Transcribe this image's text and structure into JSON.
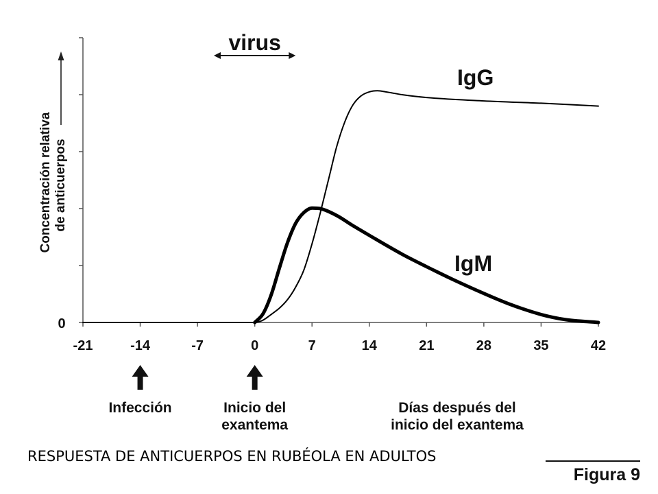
{
  "chart_data": {
    "type": "line",
    "title": "RESPUESTA DE ANTICUERPOS EN RUBÉOLA EN ADULTOS",
    "xlabel": [
      "Días después del",
      "inicio del exantema"
    ],
    "ylabel": [
      "Concentración relativa",
      "de anticuerpos"
    ],
    "xlim": [
      -21,
      42
    ],
    "ylim": [
      0,
      5
    ],
    "xticks": [
      -21,
      -14,
      -7,
      0,
      7,
      14,
      21,
      28,
      35,
      42
    ],
    "yticks": [
      0,
      1,
      2,
      3,
      4,
      5
    ],
    "ytick_labels": [
      {
        "value": 0,
        "label": "0"
      }
    ],
    "grid": false,
    "series": [
      {
        "name": "IgG",
        "color": "#000000",
        "x": [
          -21,
          -14,
          -7,
          0,
          1,
          2,
          3,
          4,
          5,
          6,
          7,
          8,
          9,
          10,
          11,
          12,
          13,
          14,
          15,
          16,
          18,
          21,
          28,
          35,
          42
        ],
        "y": [
          0,
          0,
          0,
          0,
          0.04,
          0.14,
          0.25,
          0.4,
          0.62,
          0.92,
          1.38,
          1.92,
          2.5,
          3.08,
          3.52,
          3.82,
          3.98,
          4.05,
          4.07,
          4.05,
          4.0,
          3.95,
          3.89,
          3.85,
          3.8
        ]
      },
      {
        "name": "IgM",
        "color": "#000000",
        "x": [
          0,
          1,
          2,
          3,
          4,
          5,
          6,
          7,
          8,
          10,
          12,
          14,
          18,
          21,
          24,
          28,
          31,
          35,
          38,
          42
        ],
        "y": [
          0,
          0.15,
          0.48,
          0.95,
          1.4,
          1.74,
          1.93,
          2.01,
          2.0,
          1.88,
          1.7,
          1.53,
          1.2,
          0.98,
          0.77,
          0.51,
          0.33,
          0.14,
          0.05,
          0
        ]
      }
    ],
    "annotations": {
      "virus": {
        "label": "virus",
        "from": -5,
        "to": 5
      },
      "events": [
        {
          "x": -14,
          "lines": [
            "Infección"
          ]
        },
        {
          "x": 0,
          "lines": [
            "Inicio del",
            "exantema"
          ]
        }
      ]
    }
  },
  "figure": {
    "label": "Figura 9"
  }
}
